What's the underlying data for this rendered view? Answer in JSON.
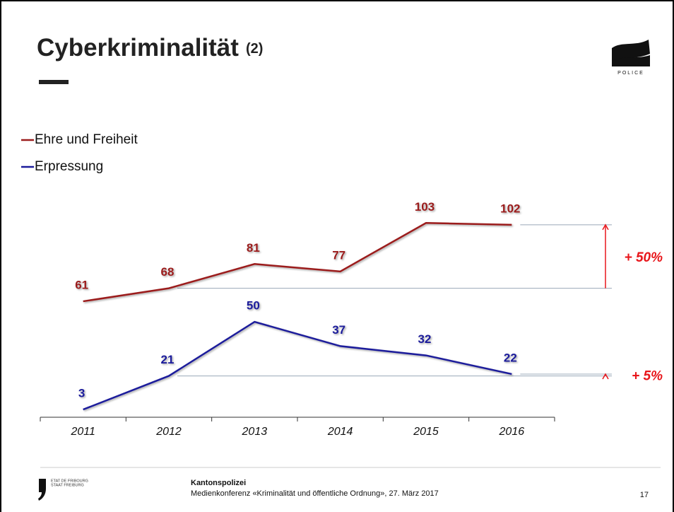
{
  "header": {
    "title": "Cyberkriminalität",
    "title_suffix": "(2)",
    "logo_text": "POLICE"
  },
  "chart_data": {
    "type": "line",
    "categories": [
      "2011",
      "2012",
      "2013",
      "2014",
      "2015",
      "2016"
    ],
    "series": [
      {
        "name": "Ehre und Freiheit",
        "color": "#9b1c1c",
        "values": [
          61,
          68,
          81,
          77,
          103,
          102
        ]
      },
      {
        "name": "Erpressung",
        "color": "#1c1c9b",
        "values": [
          3,
          21,
          50,
          37,
          32,
          22
        ]
      }
    ],
    "ylim": [
      0,
      105
    ],
    "annotations": [
      "+ 50%",
      "+ 5%"
    ],
    "annotation_color": "#e8161b"
  },
  "footer": {
    "org_line1": "ETAT DE FRIBOURG",
    "org_line2": "STAAT FREIBURG",
    "unit": "Kantonspolizei",
    "event": "Medienkonferenz «Kriminalität und öffentliche Ordnung», 27. März 2017",
    "page": "17"
  }
}
